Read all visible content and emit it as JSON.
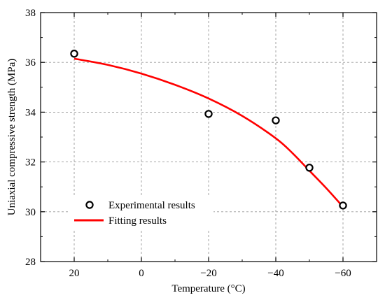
{
  "chart_data": {
    "type": "scatter",
    "xlabel": "Temperature (°C)",
    "ylabel": "Uniaxial compressive strength (MPa)",
    "x_reversed": true,
    "xlim": [
      30,
      -70
    ],
    "ylim": [
      28,
      38
    ],
    "x_ticks": [
      20,
      0,
      -20,
      -40,
      -60
    ],
    "x_tick_labels": [
      "20",
      "0",
      "−20",
      "−40",
      "−60"
    ],
    "y_ticks": [
      28,
      30,
      32,
      34,
      36,
      38
    ],
    "y_tick_labels": [
      "28",
      "30",
      "32",
      "34",
      "36",
      "38"
    ],
    "grid": true,
    "legend_position": "lower-left",
    "series": [
      {
        "name": "Experimental results",
        "marker": "open-circle",
        "color": "#000000",
        "x": [
          20,
          -20,
          -40,
          -50,
          -60
        ],
        "y": [
          36.35,
          33.93,
          33.67,
          31.77,
          30.25
        ]
      },
      {
        "name": "Fitting results",
        "kind": "line",
        "color": "#ff0000",
        "x": [
          20,
          10,
          0,
          -10,
          -20,
          -30,
          -40,
          -45,
          -50,
          -55,
          -60
        ],
        "y": [
          36.15,
          35.9,
          35.55,
          35.1,
          34.55,
          33.85,
          32.95,
          32.35,
          31.65,
          30.95,
          30.2
        ]
      }
    ]
  }
}
